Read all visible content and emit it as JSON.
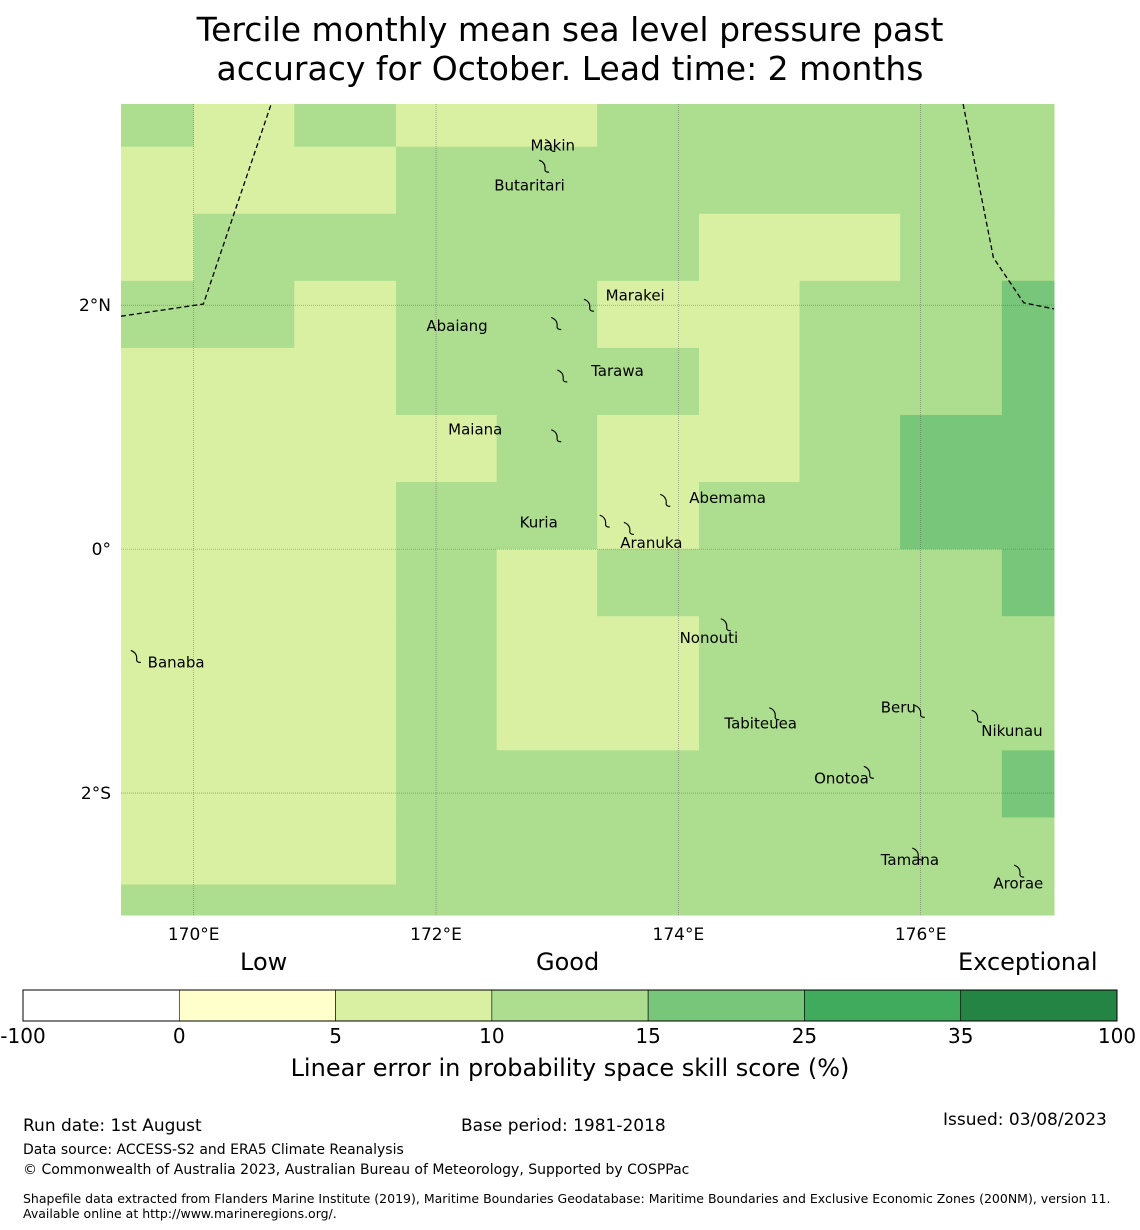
{
  "title_line1": "Tercile monthly mean sea level pressure past",
  "title_line2": "accuracy for October. Lead time: 2 months",
  "map": {
    "lon_range": [
      169.4,
      177.1
    ],
    "lat_range": [
      -3.0,
      3.65
    ],
    "x_ticks": [
      {
        "lon": 170,
        "label": "170°E"
      },
      {
        "lon": 172,
        "label": "172°E"
      },
      {
        "lon": 174,
        "label": "174°E"
      },
      {
        "lon": 176,
        "label": "176°E"
      }
    ],
    "y_ticks": [
      {
        "lat": 2,
        "label": "2°N"
      },
      {
        "lat": 0,
        "label": "0°"
      },
      {
        "lat": -2,
        "label": "2°S"
      }
    ],
    "colors": {
      "class1": "#ffffcc",
      "class2": "#d9f0a3",
      "class3": "#addd8e",
      "class4": "#78c679",
      "class5": "#41ab5d",
      "class6": "#238443"
    },
    "grid_cells": [
      {
        "lon": [
          169.4,
          170.0
        ],
        "lat": [
          3.3,
          3.65
        ],
        "cls": 3
      },
      {
        "lon": [
          170.0,
          170.83
        ],
        "lat": [
          3.3,
          3.65
        ],
        "cls": 2
      },
      {
        "lon": [
          170.83,
          171.67
        ],
        "lat": [
          3.3,
          3.65
        ],
        "cls": 3
      },
      {
        "lon": [
          171.67,
          173.33
        ],
        "lat": [
          3.3,
          3.65
        ],
        "cls": 2
      },
      {
        "lon": [
          173.33,
          177.1
        ],
        "lat": [
          3.3,
          3.65
        ],
        "cls": 3
      },
      {
        "lon": [
          169.4,
          171.67
        ],
        "lat": [
          2.75,
          3.3
        ],
        "cls": 2
      },
      {
        "lon": [
          171.67,
          177.1
        ],
        "lat": [
          2.75,
          3.3
        ],
        "cls": 3
      },
      {
        "lon": [
          169.4,
          170.0
        ],
        "lat": [
          2.2,
          2.75
        ],
        "cls": 2
      },
      {
        "lon": [
          170.0,
          174.17
        ],
        "lat": [
          2.2,
          2.75
        ],
        "cls": 3
      },
      {
        "lon": [
          174.17,
          175.83
        ],
        "lat": [
          2.2,
          2.75
        ],
        "cls": 2
      },
      {
        "lon": [
          175.83,
          177.1
        ],
        "lat": [
          2.2,
          2.75
        ],
        "cls": 3
      },
      {
        "lon": [
          169.4,
          170.83
        ],
        "lat": [
          1.65,
          2.2
        ],
        "cls": 3
      },
      {
        "lon": [
          170.83,
          171.67
        ],
        "lat": [
          1.65,
          2.2
        ],
        "cls": 2
      },
      {
        "lon": [
          171.67,
          173.33
        ],
        "lat": [
          1.65,
          2.2
        ],
        "cls": 3
      },
      {
        "lon": [
          173.33,
          175.0
        ],
        "lat": [
          1.65,
          2.2
        ],
        "cls": 2
      },
      {
        "lon": [
          175.0,
          176.67
        ],
        "lat": [
          1.65,
          2.2
        ],
        "cls": 3
      },
      {
        "lon": [
          176.67,
          177.1
        ],
        "lat": [
          1.65,
          2.2
        ],
        "cls": 4
      },
      {
        "lon": [
          169.4,
          171.67
        ],
        "lat": [
          1.1,
          1.65
        ],
        "cls": 2
      },
      {
        "lon": [
          171.67,
          174.17
        ],
        "lat": [
          1.1,
          1.65
        ],
        "cls": 3
      },
      {
        "lon": [
          174.17,
          175.0
        ],
        "lat": [
          1.1,
          1.65
        ],
        "cls": 2
      },
      {
        "lon": [
          175.0,
          176.67
        ],
        "lat": [
          1.1,
          1.65
        ],
        "cls": 3
      },
      {
        "lon": [
          176.67,
          177.1
        ],
        "lat": [
          1.1,
          1.65
        ],
        "cls": 4
      },
      {
        "lon": [
          169.4,
          172.5
        ],
        "lat": [
          0.55,
          1.1
        ],
        "cls": 2
      },
      {
        "lon": [
          172.5,
          173.33
        ],
        "lat": [
          0.55,
          1.1
        ],
        "cls": 3
      },
      {
        "lon": [
          173.33,
          175.0
        ],
        "lat": [
          0.55,
          1.1
        ],
        "cls": 2
      },
      {
        "lon": [
          175.0,
          175.83
        ],
        "lat": [
          0.55,
          1.1
        ],
        "cls": 3
      },
      {
        "lon": [
          175.83,
          177.1
        ],
        "lat": [
          0.55,
          1.1
        ],
        "cls": 4
      },
      {
        "lon": [
          169.4,
          171.67
        ],
        "lat": [
          0.0,
          0.55
        ],
        "cls": 2
      },
      {
        "lon": [
          171.67,
          173.33
        ],
        "lat": [
          0.0,
          0.55
        ],
        "cls": 3
      },
      {
        "lon": [
          173.33,
          174.17
        ],
        "lat": [
          0.0,
          0.55
        ],
        "cls": 2
      },
      {
        "lon": [
          174.17,
          175.83
        ],
        "lat": [
          0.0,
          0.55
        ],
        "cls": 3
      },
      {
        "lon": [
          175.83,
          177.1
        ],
        "lat": [
          0.0,
          0.55
        ],
        "cls": 4
      },
      {
        "lon": [
          169.4,
          171.67
        ],
        "lat": [
          -0.55,
          0.0
        ],
        "cls": 2
      },
      {
        "lon": [
          171.67,
          172.5
        ],
        "lat": [
          -0.55,
          0.0
        ],
        "cls": 3
      },
      {
        "lon": [
          172.5,
          173.33
        ],
        "lat": [
          -0.55,
          0.0
        ],
        "cls": 2
      },
      {
        "lon": [
          173.33,
          176.67
        ],
        "lat": [
          -0.55,
          0.0
        ],
        "cls": 3
      },
      {
        "lon": [
          176.67,
          177.1
        ],
        "lat": [
          -0.55,
          0.0
        ],
        "cls": 4
      },
      {
        "lon": [
          169.4,
          171.67
        ],
        "lat": [
          -1.65,
          -0.55
        ],
        "cls": 2
      },
      {
        "lon": [
          171.67,
          172.5
        ],
        "lat": [
          -1.65,
          -0.55
        ],
        "cls": 3
      },
      {
        "lon": [
          172.5,
          174.17
        ],
        "lat": [
          -1.65,
          -0.55
        ],
        "cls": 2
      },
      {
        "lon": [
          174.17,
          177.1
        ],
        "lat": [
          -1.65,
          -0.55
        ],
        "cls": 3
      },
      {
        "lon": [
          169.4,
          171.67
        ],
        "lat": [
          -2.2,
          -1.65
        ],
        "cls": 2
      },
      {
        "lon": [
          171.67,
          176.67
        ],
        "lat": [
          -2.2,
          -1.65
        ],
        "cls": 3
      },
      {
        "lon": [
          176.67,
          177.1
        ],
        "lat": [
          -2.2,
          -1.65
        ],
        "cls": 4
      },
      {
        "lon": [
          169.4,
          171.67
        ],
        "lat": [
          -2.75,
          -2.2
        ],
        "cls": 2
      },
      {
        "lon": [
          171.67,
          177.1
        ],
        "lat": [
          -2.75,
          -2.2
        ],
        "cls": 3
      },
      {
        "lon": [
          169.4,
          177.1
        ],
        "lat": [
          -3.0,
          -2.75
        ],
        "cls": 3
      }
    ],
    "islands": [
      {
        "name": "Makin",
        "lon": 172.95,
        "lat": 3.31,
        "label_lon": 172.78,
        "label_lat": 3.31
      },
      {
        "name": "Butaritari",
        "lon": 172.9,
        "lat": 3.14,
        "label_lon": 172.48,
        "label_lat": 2.98
      },
      {
        "name": "Marakei",
        "lon": 173.27,
        "lat": 2.0,
        "label_lon": 173.4,
        "label_lat": 2.08
      },
      {
        "name": "Abaiang",
        "lon": 173.0,
        "lat": 1.85,
        "label_lon": 171.92,
        "label_lat": 1.83
      },
      {
        "name": "Tarawa",
        "lon": 173.05,
        "lat": 1.42,
        "label_lon": 173.28,
        "label_lat": 1.46
      },
      {
        "name": "Maiana",
        "lon": 173.0,
        "lat": 0.93,
        "label_lon": 172.1,
        "label_lat": 0.98
      },
      {
        "name": "Abemama",
        "lon": 173.9,
        "lat": 0.4,
        "label_lon": 174.09,
        "label_lat": 0.42
      },
      {
        "name": "Kuria",
        "lon": 173.4,
        "lat": 0.23,
        "label_lon": 172.69,
        "label_lat": 0.22
      },
      {
        "name": "Aranuka",
        "lon": 173.6,
        "lat": 0.17,
        "label_lon": 173.52,
        "label_lat": 0.05
      },
      {
        "name": "Nonouti",
        "lon": 174.4,
        "lat": -0.62,
        "label_lon": 174.01,
        "label_lat": -0.73
      },
      {
        "name": "Banaba",
        "lon": 169.53,
        "lat": -0.88,
        "label_lon": 169.62,
        "label_lat": -0.93
      },
      {
        "name": "Tabiteuea",
        "lon": 174.8,
        "lat": -1.35,
        "label_lon": 174.38,
        "label_lat": -1.43
      },
      {
        "name": "Beru",
        "lon": 176.0,
        "lat": -1.33,
        "label_lon": 175.67,
        "label_lat": -1.3
      },
      {
        "name": "Nikunau",
        "lon": 176.47,
        "lat": -1.37,
        "label_lon": 176.5,
        "label_lat": -1.49
      },
      {
        "name": "Onotoa",
        "lon": 175.58,
        "lat": -1.83,
        "label_lon": 175.12,
        "label_lat": -1.88
      },
      {
        "name": "Tamana",
        "lon": 175.98,
        "lat": -2.5,
        "label_lon": 175.67,
        "label_lat": -2.55
      },
      {
        "name": "Arorae",
        "lon": 176.82,
        "lat": -2.64,
        "label_lon": 176.6,
        "label_lat": -2.74
      }
    ],
    "boundary_west": [
      [
        169.4,
        1.91
      ],
      [
        170.08,
        2.01
      ],
      [
        170.64,
        3.65
      ]
    ],
    "boundary_east": [
      [
        176.35,
        3.65
      ],
      [
        176.6,
        2.39
      ],
      [
        176.85,
        2.02
      ],
      [
        177.1,
        1.97
      ]
    ]
  },
  "colorbar": {
    "category_labels": [
      "Low",
      "Good",
      "Exceptional"
    ],
    "boundaries": [
      "-100",
      "0",
      "5",
      "10",
      "15",
      "25",
      "35",
      "100"
    ],
    "bin_colors": [
      "#ffffff",
      "#ffffcc",
      "#d9f0a3",
      "#addd8e",
      "#78c679",
      "#41ab5d",
      "#238443"
    ],
    "title": "Linear error in probability space skill score (%)"
  },
  "footer": {
    "run_date": "Run date: 1st August",
    "base_period": "Base period: 1981-2018",
    "issued": "Issued: 03/08/2023",
    "data_source": "Data source: ACCESS-S2 and ERA5 Climate Reanalysis",
    "copyright": "© Commonwealth of Australia 2023, Australian Bureau of Meteorology, Supported by COSPPac",
    "shapefile_note": "Shapefile data extracted from Flanders Marine Institute (2019), Maritime Boundaries Geodatabase: Maritime Boundaries and Exclusive Economic Zones (200NM), version 11. Available online at http://www.marineregions.org/."
  }
}
